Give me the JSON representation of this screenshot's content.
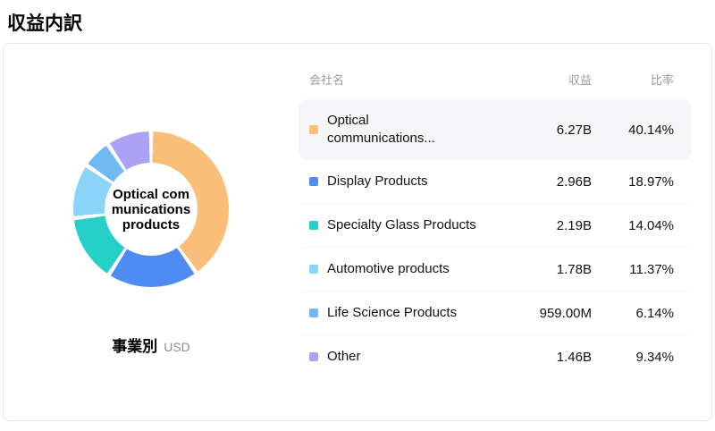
{
  "page_title": "収益内訳",
  "table": {
    "headers": {
      "name": "会社名",
      "revenue": "収益",
      "ratio": "比率"
    }
  },
  "chart_data": {
    "type": "pie",
    "variant": "donut",
    "center_label": "Optical communications products",
    "caption": "事業別",
    "unit": "USD",
    "legend_position": "right",
    "segments": [
      {
        "label": "Optical communications...",
        "value": "6.27B",
        "percent": 40.14,
        "percent_label": "40.14%",
        "color": "#F9BE77",
        "highlighted": true
      },
      {
        "label": "Display Products",
        "value": "2.96B",
        "percent": 18.97,
        "percent_label": "18.97%",
        "color": "#4E8CF2",
        "highlighted": false
      },
      {
        "label": "Specialty Glass Products",
        "value": "2.19B",
        "percent": 14.04,
        "percent_label": "14.04%",
        "color": "#26D0C9",
        "highlighted": false
      },
      {
        "label": "Automotive products",
        "value": "1.78B",
        "percent": 11.37,
        "percent_label": "11.37%",
        "color": "#8BD4F9",
        "highlighted": false
      },
      {
        "label": "Life Science Products",
        "value": "959.00M",
        "percent": 6.14,
        "percent_label": "6.14%",
        "color": "#6FB9F4",
        "highlighted": false
      },
      {
        "label": "Other",
        "value": "1.46B",
        "percent": 9.34,
        "percent_label": "9.34%",
        "color": "#ABA2F7",
        "highlighted": false
      }
    ]
  }
}
